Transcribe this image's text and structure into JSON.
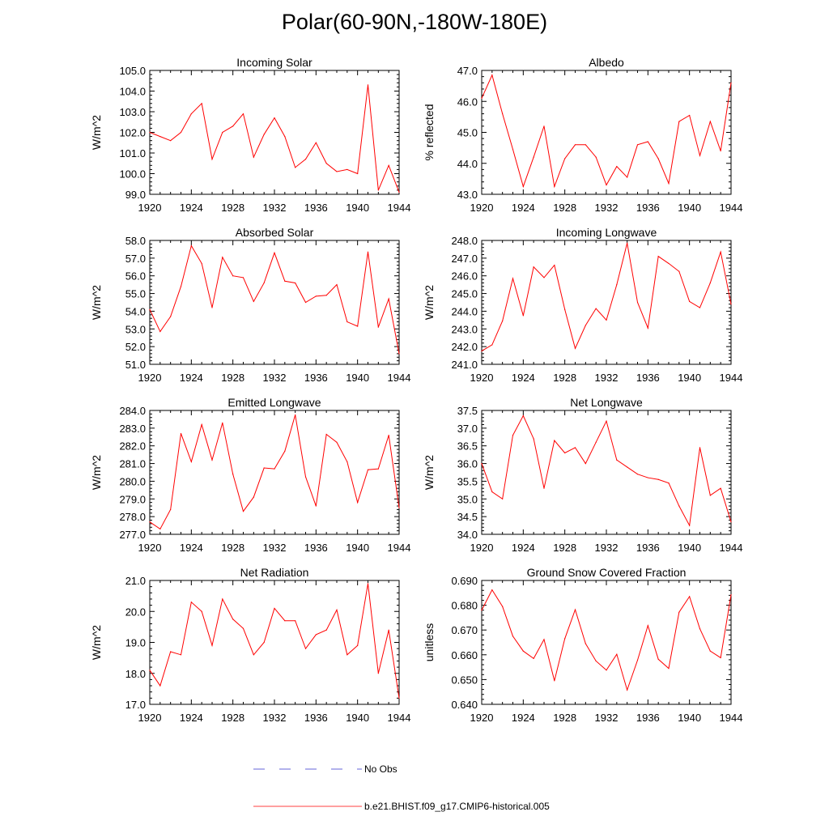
{
  "title": "Polar(60-90N,-180W-180E)",
  "legend": {
    "obs_label": "No Obs",
    "model_label": "b.e21.BHIST.f09_g17.CMIP6-historical.005",
    "obs_color": "#3333cc",
    "model_color": "#ff0000"
  },
  "chart_data": [
    {
      "type": "line",
      "title": "Incoming Solar",
      "ylabel": "W/m^2",
      "xlim": [
        1920,
        1944
      ],
      "ylim": [
        99.0,
        105.0
      ],
      "x_ticks": [
        1920,
        1924,
        1928,
        1932,
        1936,
        1940,
        1944
      ],
      "y_ticks": [
        "99.0",
        "100.0",
        "101.0",
        "102.0",
        "103.0",
        "104.0",
        "105.0"
      ],
      "series": [
        {
          "name": "b.e21.BHIST.f09_g17.CMIP6-historical.005",
          "x": [
            1920,
            1921,
            1922,
            1923,
            1924,
            1925,
            1926,
            1927,
            1928,
            1929,
            1930,
            1931,
            1932,
            1933,
            1934,
            1935,
            1936,
            1937,
            1938,
            1939,
            1940,
            1941,
            1942,
            1943,
            1944
          ],
          "values": [
            102.0,
            101.8,
            101.6,
            102.0,
            102.9,
            103.4,
            100.7,
            102.0,
            102.3,
            102.9,
            100.8,
            101.9,
            102.7,
            101.8,
            100.3,
            100.7,
            101.5,
            100.5,
            100.1,
            100.2,
            100.0,
            104.3,
            99.2,
            100.4,
            99.1
          ]
        }
      ]
    },
    {
      "type": "line",
      "title": "Albedo",
      "ylabel": "% reflected",
      "xlim": [
        1920,
        1944
      ],
      "ylim": [
        43.0,
        47.0
      ],
      "x_ticks": [
        1920,
        1924,
        1928,
        1932,
        1936,
        1940,
        1944
      ],
      "y_ticks": [
        "43.0",
        "44.0",
        "45.0",
        "46.0",
        "47.0"
      ],
      "series": [
        {
          "name": "b.e21.BHIST.f09_g17.CMIP6-historical.005",
          "x": [
            1920,
            1921,
            1922,
            1923,
            1924,
            1925,
            1926,
            1927,
            1928,
            1929,
            1930,
            1931,
            1932,
            1933,
            1934,
            1935,
            1936,
            1937,
            1938,
            1939,
            1940,
            1941,
            1942,
            1943,
            1944
          ],
          "values": [
            46.1,
            46.85,
            45.6,
            44.45,
            43.25,
            44.2,
            45.2,
            43.25,
            44.15,
            44.6,
            44.6,
            44.2,
            43.3,
            43.9,
            43.55,
            44.6,
            44.7,
            44.15,
            43.35,
            45.35,
            45.55,
            44.25,
            45.35,
            44.4,
            46.6
          ]
        }
      ]
    },
    {
      "type": "line",
      "title": "Absorbed Solar",
      "ylabel": "W/m^2",
      "xlim": [
        1920,
        1944
      ],
      "ylim": [
        51.0,
        58.0
      ],
      "x_ticks": [
        1920,
        1924,
        1928,
        1932,
        1936,
        1940,
        1944
      ],
      "y_ticks": [
        "51.0",
        "52.0",
        "53.0",
        "54.0",
        "55.0",
        "56.0",
        "57.0",
        "58.0"
      ],
      "series": [
        {
          "name": "b.e21.BHIST.f09_g17.CMIP6-historical.005",
          "x": [
            1920,
            1921,
            1922,
            1923,
            1924,
            1925,
            1926,
            1927,
            1928,
            1929,
            1930,
            1931,
            1932,
            1933,
            1934,
            1935,
            1936,
            1937,
            1938,
            1939,
            1940,
            1941,
            1942,
            1943,
            1944
          ],
          "values": [
            54.1,
            52.85,
            53.7,
            55.4,
            57.7,
            56.7,
            54.2,
            57.05,
            56.0,
            55.9,
            54.55,
            55.6,
            57.3,
            55.7,
            55.6,
            54.5,
            54.85,
            54.9,
            55.5,
            53.4,
            53.15,
            57.35,
            53.1,
            54.7,
            51.6
          ]
        }
      ]
    },
    {
      "type": "line",
      "title": "Incoming Longwave",
      "ylabel": "W/m^2",
      "xlim": [
        1920,
        1944
      ],
      "ylim": [
        241.0,
        248.0
      ],
      "x_ticks": [
        1920,
        1924,
        1928,
        1932,
        1936,
        1940,
        1944
      ],
      "y_ticks": [
        "241.0",
        "242.0",
        "243.0",
        "244.0",
        "245.0",
        "246.0",
        "247.0",
        "248.0"
      ],
      "series": [
        {
          "name": "b.e21.BHIST.f09_g17.CMIP6-historical.005",
          "x": [
            1920,
            1921,
            1922,
            1923,
            1924,
            1925,
            1926,
            1927,
            1928,
            1929,
            1930,
            1931,
            1932,
            1933,
            1934,
            1935,
            1936,
            1937,
            1938,
            1939,
            1940,
            1941,
            1942,
            1943,
            1944
          ],
          "values": [
            241.75,
            242.1,
            243.45,
            245.85,
            243.75,
            246.5,
            245.9,
            246.6,
            244.1,
            241.9,
            243.2,
            244.15,
            243.5,
            245.5,
            247.85,
            244.5,
            243.05,
            247.1,
            246.7,
            246.25,
            244.55,
            244.2,
            245.6,
            247.35,
            244.4
          ]
        }
      ]
    },
    {
      "type": "line",
      "title": "Emitted Longwave",
      "ylabel": "W/m^2",
      "xlim": [
        1920,
        1944
      ],
      "ylim": [
        277.0,
        284.0
      ],
      "x_ticks": [
        1920,
        1924,
        1928,
        1932,
        1936,
        1940,
        1944
      ],
      "y_ticks": [
        "277.0",
        "278.0",
        "279.0",
        "280.0",
        "281.0",
        "282.0",
        "283.0",
        "284.0"
      ],
      "series": [
        {
          "name": "b.e21.BHIST.f09_g17.CMIP6-historical.005",
          "x": [
            1920,
            1921,
            1922,
            1923,
            1924,
            1925,
            1926,
            1927,
            1928,
            1929,
            1930,
            1931,
            1932,
            1933,
            1934,
            1935,
            1936,
            1937,
            1938,
            1939,
            1940,
            1941,
            1942,
            1943,
            1944
          ],
          "values": [
            277.7,
            277.3,
            278.4,
            282.7,
            281.1,
            283.2,
            281.2,
            283.3,
            280.4,
            278.3,
            279.1,
            280.75,
            280.7,
            281.7,
            283.75,
            280.25,
            278.6,
            282.65,
            282.2,
            281.1,
            278.8,
            280.65,
            280.7,
            282.6,
            278.5
          ]
        }
      ]
    },
    {
      "type": "line",
      "title": "Net Longwave",
      "ylabel": "W/m^2",
      "xlim": [
        1920,
        1944
      ],
      "ylim": [
        34.0,
        37.5
      ],
      "x_ticks": [
        1920,
        1924,
        1928,
        1932,
        1936,
        1940,
        1944
      ],
      "y_ticks": [
        "34.0",
        "34.5",
        "35.0",
        "35.5",
        "36.0",
        "36.5",
        "37.0",
        "37.5"
      ],
      "series": [
        {
          "name": "b.e21.BHIST.f09_g17.CMIP6-historical.005",
          "x": [
            1920,
            1921,
            1922,
            1923,
            1924,
            1925,
            1926,
            1927,
            1928,
            1929,
            1930,
            1931,
            1932,
            1933,
            1934,
            1935,
            1936,
            1937,
            1938,
            1939,
            1940,
            1941,
            1942,
            1943,
            1944
          ],
          "values": [
            36.0,
            35.2,
            35.0,
            36.8,
            37.35,
            36.7,
            35.3,
            36.65,
            36.3,
            36.45,
            36.0,
            36.6,
            37.2,
            36.1,
            35.9,
            35.7,
            35.6,
            35.55,
            35.45,
            34.8,
            34.25,
            36.45,
            35.1,
            35.3,
            34.35
          ]
        }
      ]
    },
    {
      "type": "line",
      "title": "Net Radiation",
      "ylabel": "W/m^2",
      "xlim": [
        1920,
        1944
      ],
      "ylim": [
        17.0,
        21.0
      ],
      "x_ticks": [
        1920,
        1924,
        1928,
        1932,
        1936,
        1940,
        1944
      ],
      "y_ticks": [
        "17.0",
        "18.0",
        "19.0",
        "20.0",
        "21.0"
      ],
      "series": [
        {
          "name": "b.e21.BHIST.f09_g17.CMIP6-historical.005",
          "x": [
            1920,
            1921,
            1922,
            1923,
            1924,
            1925,
            1926,
            1927,
            1928,
            1929,
            1930,
            1931,
            1932,
            1933,
            1934,
            1935,
            1936,
            1937,
            1938,
            1939,
            1940,
            1941,
            1942,
            1943,
            1944
          ],
          "values": [
            18.1,
            17.6,
            18.7,
            18.6,
            20.3,
            20.0,
            18.9,
            20.4,
            19.75,
            19.45,
            18.6,
            19.0,
            20.1,
            19.7,
            19.7,
            18.8,
            19.25,
            19.4,
            20.05,
            18.6,
            18.9,
            20.9,
            18.0,
            19.4,
            17.2
          ]
        }
      ]
    },
    {
      "type": "line",
      "title": "Ground Snow Covered Fraction",
      "ylabel": "unitless",
      "xlim": [
        1920,
        1944
      ],
      "ylim": [
        0.64,
        0.69
      ],
      "x_ticks": [
        1920,
        1924,
        1928,
        1932,
        1936,
        1940,
        1944
      ],
      "y_ticks": [
        "0.640",
        "0.650",
        "0.660",
        "0.670",
        "0.680",
        "0.690"
      ],
      "series": [
        {
          "name": "b.e21.BHIST.f09_g17.CMIP6-historical.005",
          "x": [
            1920,
            1921,
            1922,
            1923,
            1924,
            1925,
            1926,
            1927,
            1928,
            1929,
            1930,
            1931,
            1932,
            1933,
            1934,
            1935,
            1936,
            1937,
            1938,
            1939,
            1940,
            1941,
            1942,
            1943,
            1944
          ],
          "values": [
            0.678,
            0.6862,
            0.6795,
            0.6675,
            0.6615,
            0.6585,
            0.6662,
            0.6495,
            0.6665,
            0.6782,
            0.6645,
            0.6575,
            0.6538,
            0.6602,
            0.6458,
            0.6578,
            0.6718,
            0.6582,
            0.6545,
            0.6772,
            0.6835,
            0.6705,
            0.6615,
            0.6588,
            0.6842
          ]
        }
      ]
    }
  ]
}
